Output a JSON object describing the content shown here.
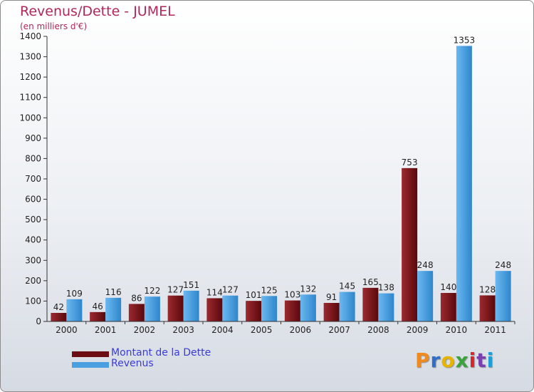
{
  "title": "Revenus/Dette - JUMEL",
  "subtitle": "(en milliers d'€)",
  "legend": [
    {
      "label": "Montant de la Dette",
      "color": "#6b0d12"
    },
    {
      "label": "Revenus",
      "color": "#4a9fe0"
    }
  ],
  "logo": {
    "text": "Proxiti"
  },
  "chart_data": {
    "type": "bar",
    "title": "Revenus/Dette - JUMEL",
    "ylabel": "(en milliers d'€)",
    "xlabel": "",
    "ylim": [
      0,
      1400
    ],
    "yticks": [
      0,
      100,
      200,
      300,
      400,
      500,
      600,
      700,
      800,
      900,
      1000,
      1100,
      1200,
      1300,
      1400
    ],
    "grid": false,
    "legend_position": "bottom-left",
    "categories": [
      "2000",
      "2001",
      "2002",
      "2003",
      "2004",
      "2005",
      "2006",
      "2007",
      "2008",
      "2009",
      "2010",
      "2011"
    ],
    "series": [
      {
        "name": "Montant de la Dette",
        "color": "#6b0d12",
        "values": [
          42,
          46,
          86,
          127,
          114,
          101,
          103,
          91,
          165,
          753,
          140,
          128
        ]
      },
      {
        "name": "Revenus",
        "color": "#4a9fe0",
        "values": [
          109,
          116,
          122,
          151,
          127,
          125,
          132,
          145,
          138,
          248,
          1353,
          248
        ]
      }
    ]
  }
}
